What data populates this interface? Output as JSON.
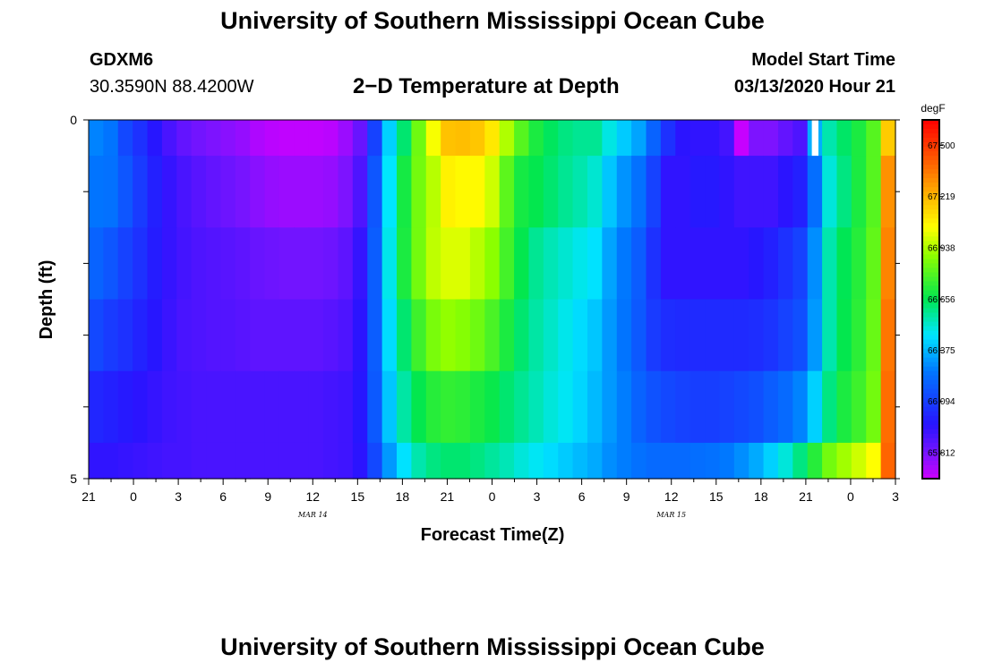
{
  "header": {
    "title": "University of Southern Mississippi Ocean Cube",
    "station_id": "GDXM6",
    "location": "30.3590N 88.4200W",
    "model_start_label": "Model Start Time",
    "model_start_value": "03/13/2020 Hour 21"
  },
  "footer": {
    "title": "University of Southern Mississippi Ocean Cube"
  },
  "chart_data": {
    "type": "heatmap",
    "title": "2−D Temperature at Depth",
    "xlabel": "Forecast Time(Z)",
    "ylabel": "Depth (ft)",
    "x_tick_labels": [
      "21",
      "0",
      "3",
      "6",
      "9",
      "12",
      "15",
      "18",
      "21",
      "0",
      "3",
      "6",
      "9",
      "12",
      "15",
      "18",
      "21",
      "0",
      "3"
    ],
    "date_labels": [
      {
        "text": "MAR 14",
        "at_tick": 5
      },
      {
        "text": "MAR 15",
        "at_tick": 13
      }
    ],
    "y_tick_labels": [
      "0",
      "5"
    ],
    "ylim": [
      0,
      5
    ],
    "hours": [
      0,
      1,
      2,
      3,
      4,
      5,
      6,
      7,
      8,
      9,
      10,
      11,
      12,
      13,
      14,
      15,
      16,
      17,
      18,
      19,
      20,
      21,
      22,
      23,
      24,
      25,
      26,
      27,
      28,
      29,
      30,
      31,
      32,
      33,
      34,
      35,
      36,
      37,
      38,
      39,
      40,
      41,
      42,
      43,
      44,
      45,
      46,
      47,
      48,
      49,
      50,
      51,
      52,
      53,
      54
    ],
    "depth_bands_ft": [
      "0.0-0.5",
      "0.5-1.5",
      "1.5-2.5",
      "2.5-3.5",
      "3.5-4.5",
      "4.5-5.0"
    ],
    "colorbar": {
      "unit": "degF",
      "min": 65.67,
      "max": 67.64,
      "tick_labels": [
        "67.500",
        "67.219",
        "66.938",
        "66.656",
        "66.375",
        "66.094",
        "65.812"
      ]
    },
    "anomaly": {
      "hour": 49,
      "depth_band": 0,
      "color": "#ffffff"
    },
    "temperatures_degF": [
      [
        66.28,
        66.25,
        66.12,
        66.05,
        65.97,
        65.9,
        65.85,
        65.82,
        65.8,
        65.78,
        65.76,
        65.72,
        65.7,
        65.69,
        65.69,
        65.69,
        65.7,
        65.75,
        65.84,
        66.1,
        66.42,
        66.62,
        66.84,
        67.04,
        67.19,
        67.2,
        67.18,
        67.1,
        66.94,
        66.8,
        66.7,
        66.64,
        66.6,
        66.58,
        66.58,
        66.49,
        66.41,
        66.34,
        66.2,
        66.05,
        65.96,
        65.95,
        65.95,
        65.91,
        65.68,
        65.8,
        65.8,
        65.85,
        65.89,
        66.36,
        66.55,
        66.63,
        66.7,
        66.8,
        67.17
      ],
      [
        66.25,
        66.24,
        66.16,
        66.08,
        66.0,
        65.94,
        65.9,
        65.87,
        65.85,
        65.83,
        65.81,
        65.78,
        65.76,
        65.75,
        65.75,
        65.75,
        65.76,
        65.8,
        65.89,
        66.16,
        66.46,
        66.69,
        66.85,
        66.95,
        67.08,
        67.06,
        67.06,
        66.98,
        66.81,
        66.69,
        66.66,
        66.62,
        66.58,
        66.55,
        66.51,
        66.4,
        66.31,
        66.24,
        66.1,
        65.95,
        65.95,
        65.98,
        65.98,
        65.95,
        65.92,
        65.92,
        65.92,
        65.96,
        66.0,
        66.23,
        66.5,
        66.6,
        66.7,
        66.8,
        67.3
      ],
      [
        66.2,
        66.16,
        66.1,
        66.05,
        65.99,
        65.94,
        65.91,
        65.89,
        65.88,
        65.87,
        65.86,
        65.84,
        65.83,
        65.82,
        65.82,
        65.82,
        65.83,
        65.86,
        65.94,
        66.18,
        66.48,
        66.7,
        66.85,
        66.96,
        67.0,
        67.0,
        66.95,
        66.89,
        66.77,
        66.66,
        66.58,
        66.54,
        66.51,
        66.48,
        66.45,
        66.34,
        66.26,
        66.18,
        66.05,
        65.95,
        65.95,
        65.95,
        65.95,
        65.95,
        65.95,
        65.97,
        66.0,
        66.05,
        66.1,
        66.3,
        66.55,
        66.65,
        66.72,
        66.82,
        67.33
      ],
      [
        66.12,
        66.08,
        66.05,
        66.01,
        65.97,
        65.93,
        65.9,
        65.89,
        65.88,
        65.88,
        65.87,
        65.86,
        65.86,
        65.86,
        65.86,
        65.86,
        65.87,
        65.89,
        65.96,
        66.18,
        66.44,
        66.62,
        66.76,
        66.86,
        66.9,
        66.88,
        66.84,
        66.78,
        66.7,
        66.62,
        66.56,
        66.52,
        66.48,
        66.44,
        66.4,
        66.32,
        66.25,
        66.17,
        66.08,
        66.04,
        66.03,
        66.03,
        66.03,
        66.03,
        66.03,
        66.04,
        66.06,
        66.1,
        66.14,
        66.32,
        66.55,
        66.66,
        66.73,
        66.83,
        67.36
      ],
      [
        66.02,
        66.0,
        65.98,
        65.96,
        65.94,
        65.92,
        65.91,
        65.9,
        65.9,
        65.9,
        65.9,
        65.9,
        65.9,
        65.9,
        65.9,
        65.9,
        65.91,
        65.92,
        65.97,
        66.17,
        66.4,
        66.56,
        66.66,
        66.72,
        66.74,
        66.73,
        66.7,
        66.67,
        66.62,
        66.58,
        66.54,
        66.5,
        66.47,
        66.43,
        66.38,
        66.32,
        66.27,
        66.2,
        66.15,
        66.12,
        66.1,
        66.09,
        66.09,
        66.1,
        66.12,
        66.14,
        66.18,
        66.22,
        66.28,
        66.42,
        66.6,
        66.7,
        66.76,
        66.85,
        67.38
      ],
      [
        65.95,
        65.95,
        65.94,
        65.93,
        65.92,
        65.91,
        65.91,
        65.9,
        65.9,
        65.9,
        65.9,
        65.9,
        65.9,
        65.9,
        65.9,
        65.9,
        65.91,
        65.92,
        65.96,
        66.12,
        66.32,
        66.45,
        66.55,
        66.6,
        66.62,
        66.62,
        66.6,
        66.57,
        66.54,
        66.5,
        66.47,
        66.44,
        66.41,
        66.38,
        66.35,
        66.3,
        66.27,
        66.24,
        66.22,
        66.22,
        66.22,
        66.23,
        66.24,
        66.26,
        66.3,
        66.35,
        66.42,
        66.5,
        66.6,
        66.72,
        66.85,
        66.92,
        66.98,
        67.05,
        67.4
      ]
    ]
  }
}
